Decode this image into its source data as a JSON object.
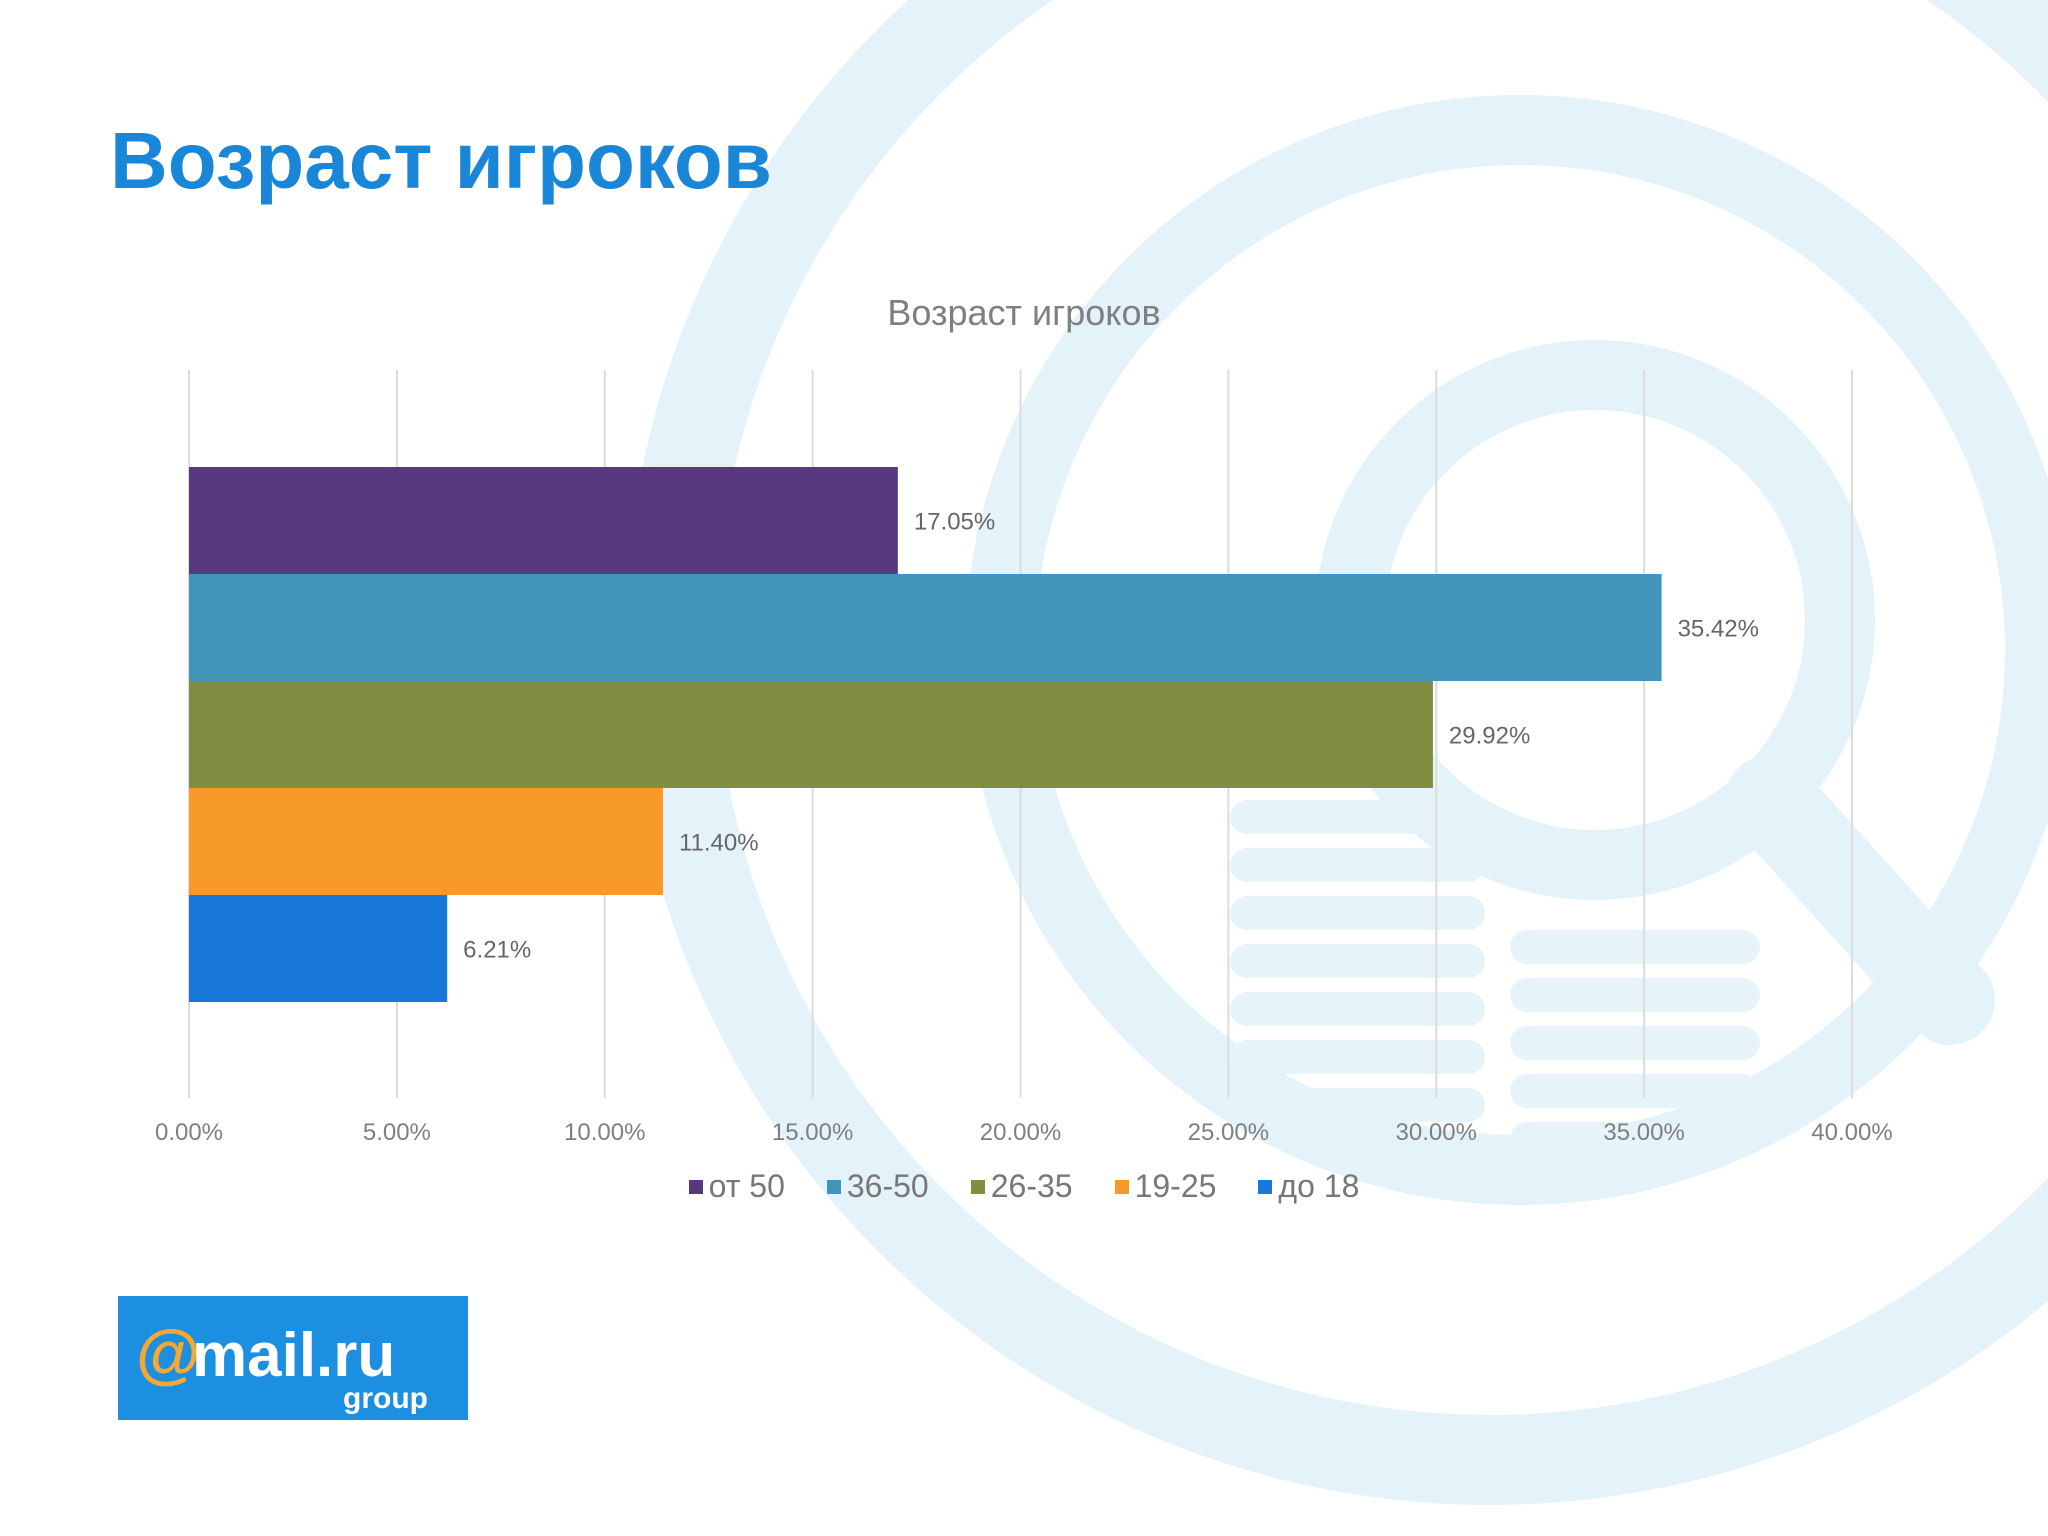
{
  "page_title": "Возраст игроков",
  "colors": {
    "title": "#1a86d8",
    "background_watermark": "#e3f3fa",
    "logo_bg": "#1d8fe0",
    "logo_accent": "#f7a833"
  },
  "background": {
    "watermark_icon": "magnifier-coins-icon"
  },
  "logo": {
    "main": "mail.ru",
    "sub": "group"
  },
  "chart_data": {
    "type": "bar",
    "orientation": "horizontal",
    "title": "Возраст игроков",
    "xlim": [
      0,
      40
    ],
    "x_ticks": [
      "0.00%",
      "5.00%",
      "10.00%",
      "15.00%",
      "20.00%",
      "25.00%",
      "30.00%",
      "35.00%",
      "40.00%"
    ],
    "gridlines": "vertical",
    "legend_position": "bottom",
    "series": [
      {
        "name": "от 50",
        "value": 17.05,
        "label": "17.05%",
        "color": "#58397f"
      },
      {
        "name": "36-50",
        "value": 35.42,
        "label": "35.42%",
        "color": "#4394b9"
      },
      {
        "name": "26-35",
        "value": 29.92,
        "label": "29.92%",
        "color": "#818d40"
      },
      {
        "name": "19-25",
        "value": 11.4,
        "label": "11.40%",
        "color": "#f89a2a"
      },
      {
        "name": "до 18",
        "value": 6.21,
        "label": "6.21%",
        "color": "#1878da"
      }
    ]
  }
}
